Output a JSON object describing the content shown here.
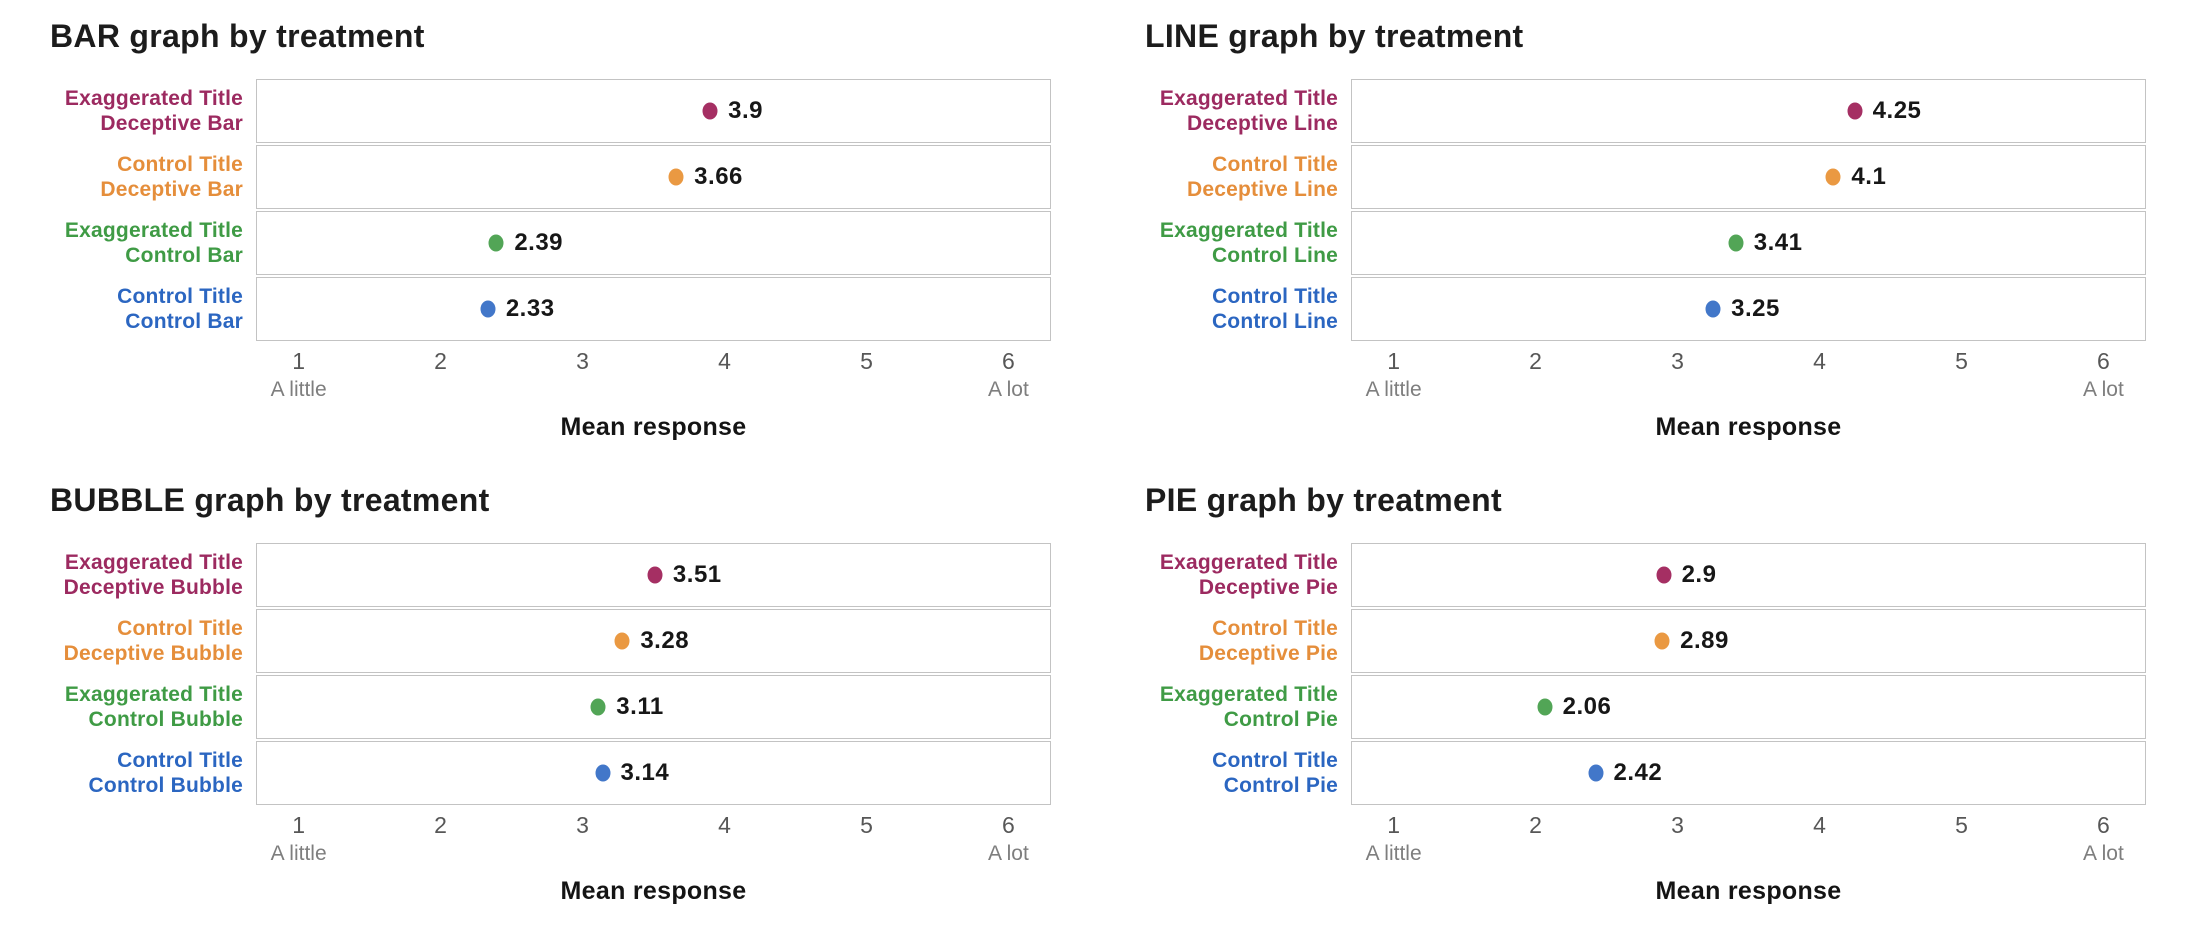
{
  "figure": {
    "background": "#ffffff",
    "text_color": "#1c1c1c",
    "grid_border_color": "#c3c3c3",
    "tick_text_color": "#575757",
    "tick_subtext_color": "#7e7e7e",
    "value_text_color": "#171717"
  },
  "palette": {
    "exaggerated_title_deceptive": "#9c2a60",
    "control_title_deceptive": "#e58e3b",
    "exaggerated_title_control": "#3f9b45",
    "control_title_control": "#2b66c1"
  },
  "chart_data": [
    {
      "slug": "bar",
      "type": "scatter",
      "title": "BAR graph by treatment",
      "xlabel": "Mean response",
      "xlim": [
        0.7,
        6.3
      ],
      "grid": true,
      "legend": "none",
      "x_ticks": [
        {
          "value": 1,
          "label": "1",
          "sublabel": "A little"
        },
        {
          "value": 2,
          "label": "2",
          "sublabel": ""
        },
        {
          "value": 3,
          "label": "3",
          "sublabel": ""
        },
        {
          "value": 4,
          "label": "4",
          "sublabel": ""
        },
        {
          "value": 5,
          "label": "5",
          "sublabel": ""
        },
        {
          "value": 6,
          "label": "6",
          "sublabel": "A lot"
        }
      ],
      "rows": [
        {
          "label_line1": "Exaggerated Title",
          "label_line2": "Deceptive Bar",
          "label_color": "#9c2a60",
          "dot_color": "#a52f63",
          "value": 3.9,
          "value_label": "3.9"
        },
        {
          "label_line1": "Control Title",
          "label_line2": "Deceptive Bar",
          "label_color": "#e58e3b",
          "dot_color": "#ea9942",
          "value": 3.66,
          "value_label": "3.66"
        },
        {
          "label_line1": "Exaggerated Title",
          "label_line2": "Control Bar",
          "label_color": "#3f9b45",
          "dot_color": "#52a556",
          "value": 2.39,
          "value_label": "2.39"
        },
        {
          "label_line1": "Control Title",
          "label_line2": "Control Bar",
          "label_color": "#2b66c1",
          "dot_color": "#4277c9",
          "value": 2.33,
          "value_label": "2.33"
        }
      ]
    },
    {
      "slug": "line",
      "type": "scatter",
      "title": "LINE graph by treatment",
      "xlabel": "Mean response",
      "xlim": [
        0.7,
        6.3
      ],
      "grid": true,
      "legend": "none",
      "x_ticks": [
        {
          "value": 1,
          "label": "1",
          "sublabel": "A little"
        },
        {
          "value": 2,
          "label": "2",
          "sublabel": ""
        },
        {
          "value": 3,
          "label": "3",
          "sublabel": ""
        },
        {
          "value": 4,
          "label": "4",
          "sublabel": ""
        },
        {
          "value": 5,
          "label": "5",
          "sublabel": ""
        },
        {
          "value": 6,
          "label": "6",
          "sublabel": "A lot"
        }
      ],
      "rows": [
        {
          "label_line1": "Exaggerated Title",
          "label_line2": "Deceptive Line",
          "label_color": "#9c2a60",
          "dot_color": "#a52f63",
          "value": 4.25,
          "value_label": "4.25"
        },
        {
          "label_line1": "Control Title",
          "label_line2": "Deceptive Line",
          "label_color": "#e58e3b",
          "dot_color": "#ea9942",
          "value": 4.1,
          "value_label": "4.1"
        },
        {
          "label_line1": "Exaggerated Title",
          "label_line2": "Control Line",
          "label_color": "#3f9b45",
          "dot_color": "#52a556",
          "value": 3.41,
          "value_label": "3.41"
        },
        {
          "label_line1": "Control Title",
          "label_line2": "Control Line",
          "label_color": "#2b66c1",
          "dot_color": "#4277c9",
          "value": 3.25,
          "value_label": "3.25"
        }
      ]
    },
    {
      "slug": "bubble",
      "type": "scatter",
      "title": "BUBBLE graph by treatment",
      "xlabel": "Mean response",
      "xlim": [
        0.7,
        6.3
      ],
      "grid": true,
      "legend": "none",
      "x_ticks": [
        {
          "value": 1,
          "label": "1",
          "sublabel": "A little"
        },
        {
          "value": 2,
          "label": "2",
          "sublabel": ""
        },
        {
          "value": 3,
          "label": "3",
          "sublabel": ""
        },
        {
          "value": 4,
          "label": "4",
          "sublabel": ""
        },
        {
          "value": 5,
          "label": "5",
          "sublabel": ""
        },
        {
          "value": 6,
          "label": "6",
          "sublabel": "A lot"
        }
      ],
      "rows": [
        {
          "label_line1": "Exaggerated Title",
          "label_line2": "Deceptive Bubble",
          "label_color": "#9c2a60",
          "dot_color": "#a52f63",
          "value": 3.51,
          "value_label": "3.51"
        },
        {
          "label_line1": "Control Title",
          "label_line2": "Deceptive Bubble",
          "label_color": "#e58e3b",
          "dot_color": "#ea9942",
          "value": 3.28,
          "value_label": "3.28"
        },
        {
          "label_line1": "Exaggerated Title",
          "label_line2": "Control Bubble",
          "label_color": "#3f9b45",
          "dot_color": "#52a556",
          "value": 3.11,
          "value_label": "3.11"
        },
        {
          "label_line1": "Control Title",
          "label_line2": "Control Bubble",
          "label_color": "#2b66c1",
          "dot_color": "#4277c9",
          "value": 3.14,
          "value_label": "3.14"
        }
      ]
    },
    {
      "slug": "pie",
      "type": "scatter",
      "title": "PIE graph by treatment",
      "xlabel": "Mean response",
      "xlim": [
        0.7,
        6.3
      ],
      "grid": true,
      "legend": "none",
      "x_ticks": [
        {
          "value": 1,
          "label": "1",
          "sublabel": "A little"
        },
        {
          "value": 2,
          "label": "2",
          "sublabel": ""
        },
        {
          "value": 3,
          "label": "3",
          "sublabel": ""
        },
        {
          "value": 4,
          "label": "4",
          "sublabel": ""
        },
        {
          "value": 5,
          "label": "5",
          "sublabel": ""
        },
        {
          "value": 6,
          "label": "6",
          "sublabel": "A lot"
        }
      ],
      "rows": [
        {
          "label_line1": "Exaggerated Title",
          "label_line2": "Deceptive Pie",
          "label_color": "#9c2a60",
          "dot_color": "#a52f63",
          "value": 2.9,
          "value_label": "2.9"
        },
        {
          "label_line1": "Control Title",
          "label_line2": "Deceptive Pie",
          "label_color": "#e58e3b",
          "dot_color": "#ea9942",
          "value": 2.89,
          "value_label": "2.89"
        },
        {
          "label_line1": "Exaggerated Title",
          "label_line2": "Control Pie",
          "label_color": "#3f9b45",
          "dot_color": "#52a556",
          "value": 2.06,
          "value_label": "2.06"
        },
        {
          "label_line1": "Control Title",
          "label_line2": "Control Pie",
          "label_color": "#2b66c1",
          "dot_color": "#4277c9",
          "value": 2.42,
          "value_label": "2.42"
        }
      ]
    }
  ]
}
